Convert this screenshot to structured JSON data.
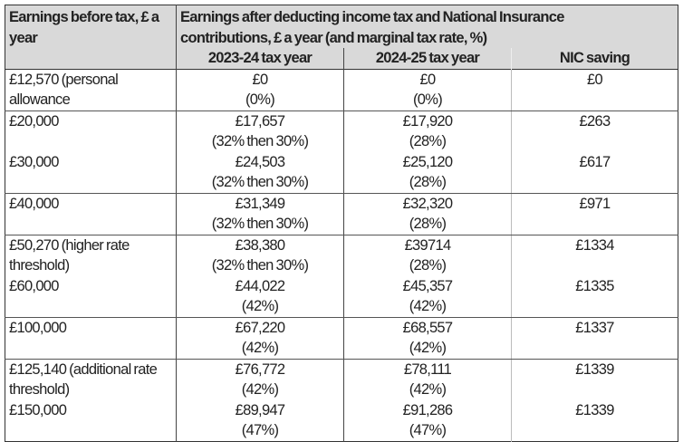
{
  "header": {
    "col1": "Earnings before tax, £ a year",
    "group": "Earnings after deducting income tax and National Insurance contributions, £ a year (and marginal tax rate, %)",
    "col2": "2023-24 tax year",
    "col3": "2024-25 tax year",
    "col4": "NIC saving"
  },
  "rows": [
    {
      "earnings": "£12,570 (personal allowance",
      "y2324": "£0",
      "r2324": "(0%)",
      "y2425": "£0",
      "r2425": "(0%)",
      "nic": "£0",
      "sep": true
    },
    {
      "earnings": "£20,000",
      "y2324": "£17,657",
      "r2324": "(32% then 30%)",
      "y2425": "£17,920",
      "r2425": "(28%)",
      "nic": "£263",
      "sep": false
    },
    {
      "earnings": "£30,000",
      "y2324": "£24,503",
      "r2324": "(32% then 30%)",
      "y2425": "£25,120",
      "r2425": "(28%)",
      "nic": "£617",
      "sep": true
    },
    {
      "earnings": "£40,000",
      "y2324": "£31,349",
      "r2324": "(32% then 30%)",
      "y2425": "£32,320",
      "r2425": "(28%)",
      "nic": "£971",
      "sep": true
    },
    {
      "earnings": "£50,270 (higher rate threshold)",
      "y2324": "£38,380",
      "r2324": "(32% then 30%)",
      "y2425": "£39714",
      "r2425": "(28%)",
      "nic": "£1334",
      "sep": false
    },
    {
      "earnings": "£60,000",
      "y2324": "£44,022",
      "r2324": "(42%)",
      "y2425": "£45,357",
      "r2425": "(42%)",
      "nic": "£1335",
      "sep": true
    },
    {
      "earnings": "£100,000",
      "y2324": "£67,220",
      "r2324": "(42%)",
      "y2425": "£68,557",
      "r2425": "(42%)",
      "nic": "£1337",
      "sep": true
    },
    {
      "earnings": "£125,140 (additional rate threshold)",
      "y2324": "£76,772",
      "r2324": "(42%)",
      "y2425": "£78,111",
      "r2425": "(42%)",
      "nic": "£1339",
      "sep": false
    },
    {
      "earnings": "£150,000",
      "y2324": "£89,947",
      "r2324": "(47%)",
      "y2425": "£91,286",
      "r2425": "(47%)",
      "nic": "£1339",
      "sep": false
    }
  ]
}
